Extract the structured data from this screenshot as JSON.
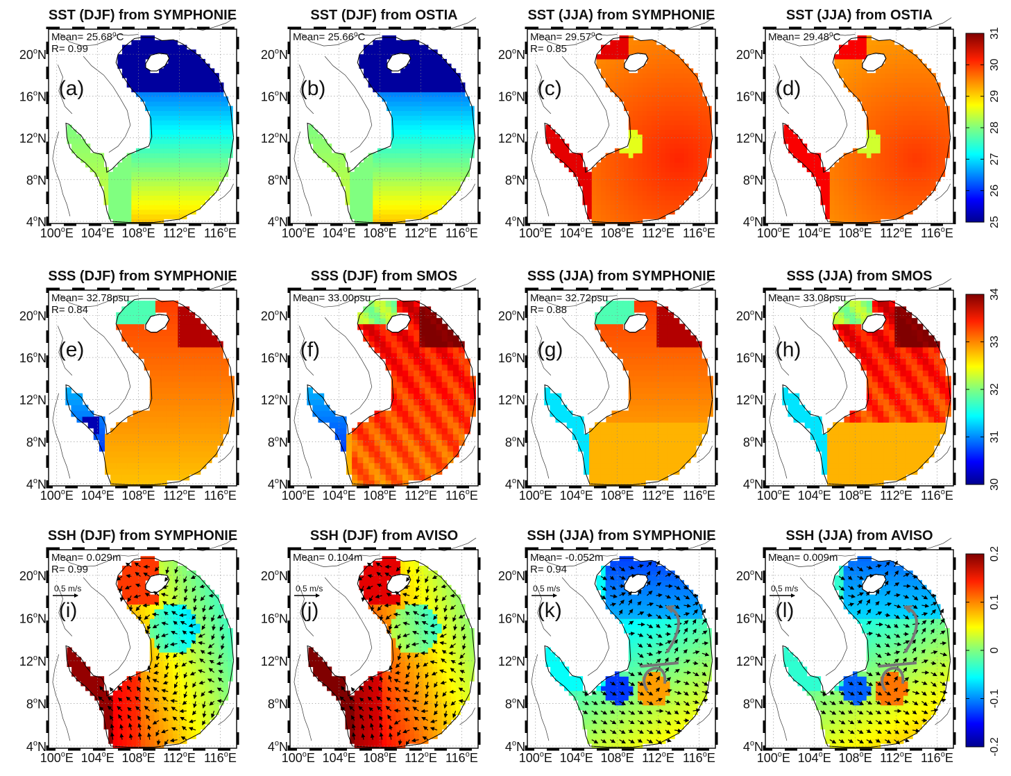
{
  "figure": {
    "rows": [
      {
        "name": "sst",
        "colorbar": {
          "ticks": [
            "25",
            "26",
            "27",
            "28",
            "29",
            "30",
            "31"
          ],
          "palette": "jet"
        },
        "panels": [
          {
            "title": "SST (DJF) from SYMPHONIE",
            "label": "(a)",
            "mean": "Mean= 25.68",
            "mean_unit": "C",
            "r": "R= 0.99"
          },
          {
            "title": "SST (DJF) from OSTIA",
            "label": "(b)",
            "mean": "Mean= 25.66",
            "mean_unit": "C",
            "r": ""
          },
          {
            "title": "SST (JJA) from SYMPHONIE",
            "label": "(c)",
            "mean": "Mean= 29.57",
            "mean_unit": "C",
            "r": "R= 0.85"
          },
          {
            "title": "SST (JJA) from OSTIA",
            "label": "(d)",
            "mean": "Mean= 29.48",
            "mean_unit": "C",
            "r": ""
          }
        ]
      },
      {
        "name": "sss",
        "colorbar": {
          "ticks": [
            "30",
            "31",
            "32",
            "33",
            "34"
          ],
          "palette": "jet"
        },
        "panels": [
          {
            "title": "SSS (DJF) from SYMPHONIE",
            "label": "(e)",
            "mean": "Mean= 32.78psu",
            "mean_unit": "",
            "r": "R= 0.84"
          },
          {
            "title": "SSS (DJF) from SMOS",
            "label": "(f)",
            "mean": "Mean= 33.00psu",
            "mean_unit": "",
            "r": ""
          },
          {
            "title": "SSS (JJA) from SYMPHONIE",
            "label": "(g)",
            "mean": "Mean= 32.72psu",
            "mean_unit": "",
            "r": "R= 0.88"
          },
          {
            "title": "SSS (JJA) from SMOS",
            "label": "(h)",
            "mean": "Mean= 33.08psu",
            "mean_unit": "",
            "r": ""
          }
        ]
      },
      {
        "name": "ssh",
        "colorbar": {
          "ticks": [
            "-0.2",
            "-0.1",
            "0",
            "0.1",
            "0.2"
          ],
          "palette": "jet"
        },
        "panels": [
          {
            "title": "SSH (DJF) from SYMPHONIE",
            "label": "(i)",
            "mean": "Mean= 0.029m",
            "mean_unit": "",
            "r": "R= 0.99",
            "vector_scale": "0.5 m/s"
          },
          {
            "title": "SSH (DJF) from AVISO",
            "label": "(j)",
            "mean": "Mean= 0.104m",
            "mean_unit": "",
            "r": "",
            "vector_scale": "0.5 m/s"
          },
          {
            "title": "SSH (JJA) from SYMPHONIE",
            "label": "(k)",
            "mean": "Mean= -0.052m",
            "mean_unit": "",
            "r": "R= 0.94",
            "vector_scale": "0.5 m/s"
          },
          {
            "title": "SSH (JJA) from AVISO",
            "label": "(l)",
            "mean": "Mean= 0.009m",
            "mean_unit": "",
            "r": "",
            "vector_scale": "0.5 m/s"
          }
        ]
      }
    ],
    "lat_ticks": [
      "4",
      "8",
      "12",
      "16",
      "20"
    ],
    "lat_suffix": "N",
    "lon_ticks": [
      "100",
      "104",
      "108",
      "112",
      "116"
    ],
    "lon_suffix": "E",
    "degree_mark": "o",
    "colors": {
      "land": "#ffffff",
      "coast": "#000000",
      "frame": "#000000",
      "eddy_arrow": "#777777"
    }
  }
}
